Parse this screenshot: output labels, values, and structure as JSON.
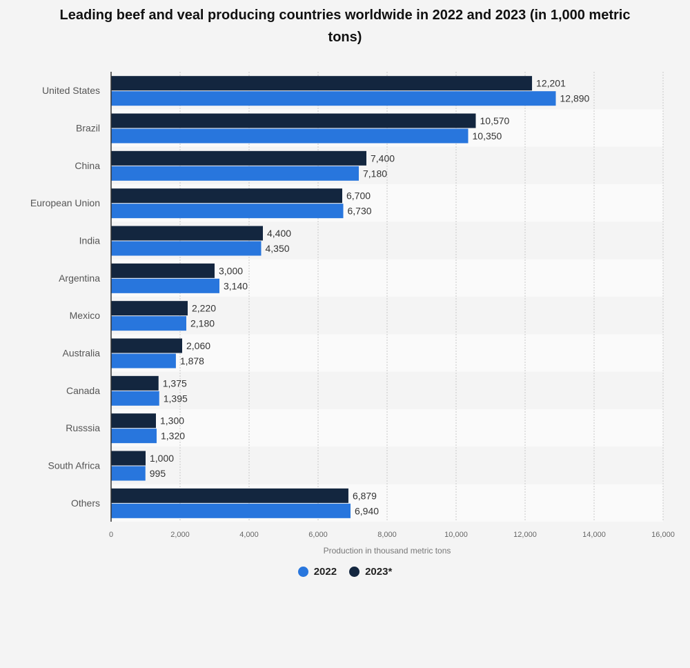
{
  "chart_data": {
    "type": "bar",
    "orientation": "horizontal",
    "title": "Leading beef and veal producing countries worldwide in 2022 and 2023 (in 1,000 metric tons)",
    "xlabel": "Production in thousand metric tons",
    "ylabel": "",
    "xlim": [
      0,
      16000
    ],
    "x_ticks": [
      "0",
      "2,000",
      "4,000",
      "6,000",
      "8,000",
      "10,000",
      "12,000",
      "14,000",
      "16,000"
    ],
    "categories": [
      "United States",
      "Brazil",
      "China",
      "European Union",
      "India",
      "Argentina",
      "Mexico",
      "Australia",
      "Canada",
      "Russsia",
      "South Africa",
      "Others"
    ],
    "series": [
      {
        "name": "2023*",
        "color": "#13263f",
        "values": [
          12201,
          10570,
          7400,
          6700,
          4400,
          3000,
          2220,
          2060,
          1375,
          1300,
          1000,
          6879
        ],
        "labels": [
          "12,201",
          "10,570",
          "7,400",
          "6,700",
          "4,400",
          "3,000",
          "2,220",
          "2,060",
          "1,375",
          "1,300",
          "1,000",
          "6,879"
        ]
      },
      {
        "name": "2022",
        "color": "#2876dd",
        "values": [
          12890,
          10350,
          7180,
          6730,
          4350,
          3140,
          2180,
          1878,
          1395,
          1320,
          995,
          6940
        ],
        "labels": [
          "12,890",
          "10,350",
          "7,180",
          "6,730",
          "4,350",
          "3,140",
          "2,180",
          "1,878",
          "1,395",
          "1,320",
          "995",
          "6,940"
        ]
      }
    ],
    "grid": true,
    "legend_position": "bottom-center"
  },
  "legend": [
    {
      "label": "2022",
      "color": "#2876dd"
    },
    {
      "label": "2023*",
      "color": "#13263f"
    }
  ]
}
